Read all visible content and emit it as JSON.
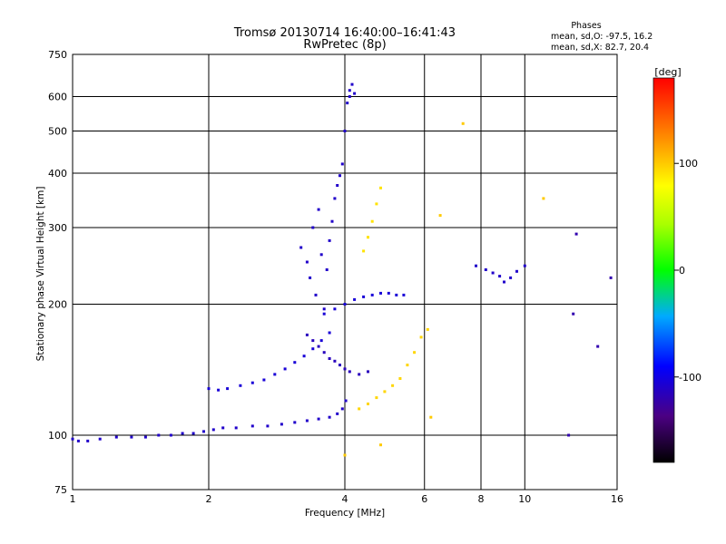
{
  "chart_data": {
    "type": "scatter",
    "title": "Tromsø 20130714 16:40:00–16:41:43",
    "subtitle": "RwPretec (8p)",
    "xlabel": "Frequency [MHz]",
    "ylabel": "Stationary phase Virtual Height [km]",
    "x_scale": "log",
    "y_scale": "log",
    "xlim": [
      1,
      16
    ],
    "ylim": [
      75,
      750
    ],
    "x_ticks": [
      1,
      2,
      4,
      6,
      8,
      10,
      16
    ],
    "y_ticks": [
      75,
      100,
      200,
      300,
      400,
      500,
      600,
      750
    ],
    "grid": true,
    "phase_info": {
      "heading": "Phases",
      "line_o": "mean, sd,O: -97.5, 16.2",
      "line_x": "mean, sd,X:  82.7, 20.4"
    },
    "colorbar": {
      "label": "[deg]",
      "range": [
        -180,
        180
      ],
      "ticks": [
        -100,
        0,
        100
      ]
    },
    "series": [
      {
        "phase": -110,
        "points": [
          [
            1.0,
            98
          ],
          [
            1.03,
            97
          ],
          [
            1.08,
            97
          ],
          [
            1.15,
            98
          ],
          [
            1.25,
            99
          ],
          [
            1.35,
            99
          ],
          [
            1.45,
            99
          ],
          [
            1.55,
            100
          ],
          [
            1.65,
            100
          ],
          [
            1.75,
            101
          ],
          [
            1.85,
            101
          ],
          [
            1.95,
            102
          ],
          [
            2.05,
            103
          ],
          [
            2.15,
            104
          ],
          [
            2.3,
            104
          ],
          [
            2.5,
            105
          ],
          [
            2.7,
            105
          ],
          [
            2.9,
            106
          ],
          [
            3.1,
            107
          ],
          [
            3.3,
            108
          ],
          [
            3.5,
            109
          ],
          [
            3.7,
            110
          ],
          [
            3.85,
            112
          ],
          [
            3.95,
            115
          ],
          [
            4.02,
            120
          ]
        ]
      },
      {
        "phase": -105,
        "points": [
          [
            2.0,
            128
          ],
          [
            2.1,
            127
          ],
          [
            2.2,
            128
          ],
          [
            2.35,
            130
          ],
          [
            2.5,
            132
          ],
          [
            2.65,
            134
          ],
          [
            2.8,
            138
          ],
          [
            2.95,
            142
          ],
          [
            3.1,
            147
          ],
          [
            3.25,
            152
          ],
          [
            3.4,
            158
          ],
          [
            3.55,
            165
          ],
          [
            3.7,
            172
          ]
        ]
      },
      {
        "phase": -110,
        "points": [
          [
            3.2,
            270
          ],
          [
            3.3,
            250
          ],
          [
            3.35,
            230
          ],
          [
            3.4,
            300
          ],
          [
            3.45,
            210
          ],
          [
            3.5,
            330
          ],
          [
            3.55,
            260
          ],
          [
            3.6,
            195
          ],
          [
            3.65,
            240
          ],
          [
            3.7,
            280
          ],
          [
            3.75,
            310
          ],
          [
            3.8,
            350
          ],
          [
            3.85,
            375
          ],
          [
            3.9,
            395
          ],
          [
            3.95,
            420
          ],
          [
            4.0,
            500
          ],
          [
            4.05,
            580
          ],
          [
            4.1,
            620
          ],
          [
            4.15,
            640
          ],
          [
            4.2,
            610
          ],
          [
            4.1,
            600
          ]
        ]
      },
      {
        "phase": -115,
        "points": [
          [
            3.3,
            170
          ],
          [
            3.4,
            165
          ],
          [
            3.5,
            160
          ],
          [
            3.6,
            155
          ],
          [
            3.7,
            150
          ],
          [
            3.8,
            148
          ],
          [
            3.9,
            145
          ],
          [
            4.0,
            142
          ],
          [
            4.1,
            140
          ],
          [
            4.3,
            138
          ],
          [
            4.5,
            140
          ]
        ]
      },
      {
        "phase": -105,
        "points": [
          [
            3.6,
            190
          ],
          [
            3.8,
            195
          ],
          [
            4.0,
            200
          ],
          [
            4.2,
            205
          ],
          [
            4.4,
            208
          ],
          [
            4.6,
            210
          ],
          [
            4.8,
            212
          ],
          [
            5.0,
            212
          ],
          [
            5.2,
            210
          ],
          [
            5.4,
            210
          ]
        ]
      },
      {
        "phase": 95,
        "points": [
          [
            4.3,
            115
          ],
          [
            4.5,
            118
          ],
          [
            4.7,
            122
          ],
          [
            4.9,
            126
          ],
          [
            5.1,
            130
          ],
          [
            5.3,
            135
          ],
          [
            5.5,
            145
          ],
          [
            5.7,
            155
          ],
          [
            5.9,
            168
          ],
          [
            6.1,
            175
          ]
        ]
      },
      {
        "phase": 90,
        "points": [
          [
            4.4,
            265
          ],
          [
            4.5,
            285
          ],
          [
            4.6,
            310
          ],
          [
            4.7,
            340
          ],
          [
            4.8,
            370
          ]
        ]
      },
      {
        "phase": -110,
        "points": [
          [
            7.8,
            245
          ],
          [
            8.2,
            240
          ],
          [
            8.5,
            236
          ],
          [
            8.8,
            232
          ],
          [
            9.0,
            225
          ],
          [
            9.3,
            230
          ],
          [
            9.6,
            238
          ],
          [
            10.0,
            245
          ]
        ]
      },
      {
        "phase": 100,
        "points": [
          [
            4.0,
            90
          ],
          [
            4.8,
            95
          ],
          [
            6.2,
            110
          ],
          [
            6.5,
            320
          ],
          [
            7.3,
            520
          ],
          [
            11.0,
            350
          ]
        ]
      },
      {
        "phase": -120,
        "points": [
          [
            12.5,
            100
          ],
          [
            12.8,
            190
          ],
          [
            13.0,
            290
          ],
          [
            14.5,
            160
          ],
          [
            15.5,
            230
          ]
        ]
      }
    ]
  }
}
